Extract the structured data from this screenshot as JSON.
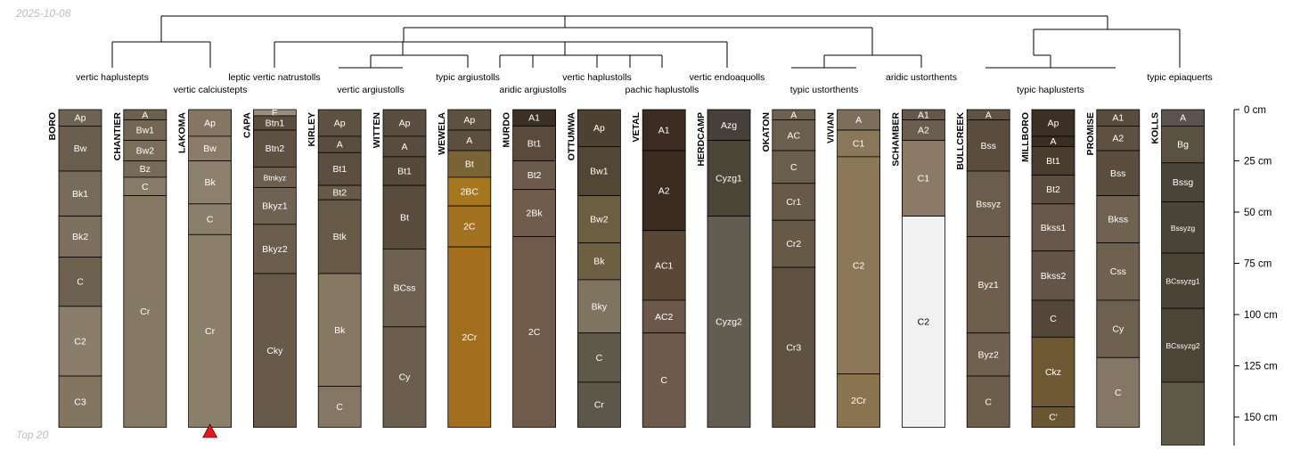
{
  "header": {
    "date": "2025-10-08",
    "footer": "Top 20"
  },
  "depth_axis": {
    "unit": "cm",
    "ticks": [
      0,
      25,
      50,
      75,
      100,
      125,
      150
    ],
    "tick_labels": [
      "0 cm",
      "25 cm",
      "50 cm",
      "75 cm",
      "100 cm",
      "125 cm",
      "150 cm"
    ]
  },
  "marker": {
    "profile": "LAKOMA",
    "shape": "triangle",
    "color": "#e8161b"
  },
  "taxa": [
    "vertic haplustepts",
    "vertic calciustepts",
    "leptic vertic natrustolls",
    "vertic argiustolls",
    "typic argiustolls",
    "aridic argiustolls",
    "vertic haplustolls",
    "pachic haplustolls",
    "vertic endoaquolls",
    "typic ustorthents",
    "aridic ustorthents",
    "typic haplusterts",
    "typic epiaquerts"
  ],
  "profiles": [
    {
      "name": "BORO",
      "horizons": [
        {
          "name": "Ap",
          "top": 0,
          "bottom": 8,
          "color": "#6f6354"
        },
        {
          "name": "Bw",
          "top": 8,
          "bottom": 30,
          "color": "#6a5e4e"
        },
        {
          "name": "Bk1",
          "top": 30,
          "bottom": 52,
          "color": "#776b5b"
        },
        {
          "name": "Bk2",
          "top": 52,
          "bottom": 72,
          "color": "#7d705f"
        },
        {
          "name": "C",
          "top": 72,
          "bottom": 96,
          "color": "#6c604f"
        },
        {
          "name": "C2",
          "top": 96,
          "bottom": 130,
          "color": "#8a7d69"
        },
        {
          "name": "C3",
          "top": 130,
          "bottom": 155,
          "color": "#837661"
        }
      ]
    },
    {
      "name": "CHANTIER",
      "horizons": [
        {
          "name": "A",
          "top": 0,
          "bottom": 5,
          "color": "#6b5f50"
        },
        {
          "name": "Bw1",
          "top": 5,
          "bottom": 15,
          "color": "#736754"
        },
        {
          "name": "Bw2",
          "top": 15,
          "bottom": 25,
          "color": "#7a6d59"
        },
        {
          "name": "Bz",
          "top": 25,
          "bottom": 33,
          "color": "#766a58"
        },
        {
          "name": "C",
          "top": 33,
          "bottom": 42,
          "color": "#877a67"
        },
        {
          "name": "Cr",
          "top": 42,
          "bottom": 155,
          "color": "#857963"
        }
      ]
    },
    {
      "name": "LAKOMA",
      "horizons": [
        {
          "name": "Ap",
          "top": 0,
          "bottom": 13,
          "color": "#847663"
        },
        {
          "name": "Bw",
          "top": 13,
          "bottom": 25,
          "color": "#8a7c68"
        },
        {
          "name": "Bk",
          "top": 25,
          "bottom": 46,
          "color": "#8d806c"
        },
        {
          "name": "C",
          "top": 46,
          "bottom": 61,
          "color": "#8b7e6a"
        },
        {
          "name": "Cr",
          "top": 61,
          "bottom": 155,
          "color": "#8c7f6a"
        }
      ]
    },
    {
      "name": "CAPA",
      "horizons": [
        {
          "name": "E",
          "top": 0,
          "bottom": 3,
          "color": "#9a8e7e"
        },
        {
          "name": "Btn1",
          "top": 3,
          "bottom": 10,
          "color": "#5a4d3e"
        },
        {
          "name": "Btn2",
          "top": 10,
          "bottom": 28,
          "color": "#5e5142"
        },
        {
          "name": "Btnkyz",
          "top": 28,
          "bottom": 38,
          "color": "#6c5f4f"
        },
        {
          "name": "Bkyz1",
          "top": 38,
          "bottom": 56,
          "color": "#6f6252"
        },
        {
          "name": "Bkyz2",
          "top": 56,
          "bottom": 80,
          "color": "#6a5d4c"
        },
        {
          "name": "Cky",
          "top": 80,
          "bottom": 155,
          "color": "#675a48"
        }
      ]
    },
    {
      "name": "KIRLEY",
      "horizons": [
        {
          "name": "Ap",
          "top": 0,
          "bottom": 13,
          "color": "#5e5142"
        },
        {
          "name": "A",
          "top": 13,
          "bottom": 21,
          "color": "#5a4d3e"
        },
        {
          "name": "Bt1",
          "top": 21,
          "bottom": 37,
          "color": "#5c4f40"
        },
        {
          "name": "Bt2",
          "top": 37,
          "bottom": 44,
          "color": "#675a48"
        },
        {
          "name": "Btk",
          "top": 44,
          "bottom": 80,
          "color": "#675a47"
        },
        {
          "name": "Bk",
          "top": 80,
          "bottom": 135,
          "color": "#857762"
        },
        {
          "name": "C",
          "top": 135,
          "bottom": 155,
          "color": "#857763"
        }
      ]
    },
    {
      "name": "WITTEN",
      "horizons": [
        {
          "name": "Ap",
          "top": 0,
          "bottom": 13,
          "color": "#5a4e40"
        },
        {
          "name": "A",
          "top": 13,
          "bottom": 23,
          "color": "#584c3e"
        },
        {
          "name": "Bt1",
          "top": 23,
          "bottom": 37,
          "color": "#56493a"
        },
        {
          "name": "Bt",
          "top": 37,
          "bottom": 68,
          "color": "#5a4c3c"
        },
        {
          "name": "BCss",
          "top": 68,
          "bottom": 106,
          "color": "#6f6150"
        },
        {
          "name": "Cy",
          "top": 106,
          "bottom": 155,
          "color": "#6b5e4c"
        }
      ]
    },
    {
      "name": "WEWELA",
      "horizons": [
        {
          "name": "Ap",
          "top": 0,
          "bottom": 10,
          "color": "#5f5140"
        },
        {
          "name": "A",
          "top": 10,
          "bottom": 20,
          "color": "#5d4f3e"
        },
        {
          "name": "Bt",
          "top": 20,
          "bottom": 33,
          "color": "#7a6335"
        },
        {
          "name": "2BC",
          "top": 33,
          "bottom": 47,
          "color": "#a5771f"
        },
        {
          "name": "2C",
          "top": 47,
          "bottom": 67,
          "color": "#a27220"
        },
        {
          "name": "2Cr",
          "top": 67,
          "bottom": 155,
          "color": "#a36f1f"
        }
      ]
    },
    {
      "name": "MURDO",
      "horizons": [
        {
          "name": "A1",
          "top": 0,
          "bottom": 8,
          "color": "#3c2f24"
        },
        {
          "name": "Bt1",
          "top": 8,
          "bottom": 25,
          "color": "#5a4a3c"
        },
        {
          "name": "Bt2",
          "top": 25,
          "bottom": 39,
          "color": "#6c5a4a"
        },
        {
          "name": "2Bk",
          "top": 39,
          "bottom": 62,
          "color": "#705c4b"
        },
        {
          "name": "2C",
          "top": 62,
          "bottom": 155,
          "color": "#705b4a"
        }
      ]
    },
    {
      "name": "OTTUMWA",
      "horizons": [
        {
          "name": "Ap",
          "top": 0,
          "bottom": 18,
          "color": "#4d4131"
        },
        {
          "name": "Bw1",
          "top": 18,
          "bottom": 42,
          "color": "#524635"
        },
        {
          "name": "Bw2",
          "top": 42,
          "bottom": 65,
          "color": "#6b5f3f"
        },
        {
          "name": "Bk",
          "top": 65,
          "bottom": 83,
          "color": "#6d6042"
        },
        {
          "name": "Bky",
          "top": 83,
          "bottom": 109,
          "color": "#7e7460"
        },
        {
          "name": "C",
          "top": 109,
          "bottom": 133,
          "color": "#5f594a"
        },
        {
          "name": "Cr",
          "top": 133,
          "bottom": 155,
          "color": "#5c5749"
        }
      ]
    },
    {
      "name": "VETAL",
      "horizons": [
        {
          "name": "A1",
          "top": 0,
          "bottom": 20,
          "color": "#3c2c22"
        },
        {
          "name": "A2",
          "top": 20,
          "bottom": 59,
          "color": "#3a2c21"
        },
        {
          "name": "AC1",
          "top": 59,
          "bottom": 93,
          "color": "#594836"
        },
        {
          "name": "AC2",
          "top": 93,
          "bottom": 109,
          "color": "#6b5848"
        },
        {
          "name": "C",
          "top": 109,
          "bottom": 155,
          "color": "#6c5b4b"
        }
      ]
    },
    {
      "name": "HERDCAMP",
      "horizons": [
        {
          "name": "Azg",
          "top": 0,
          "bottom": 15,
          "color": "#45403a"
        },
        {
          "name": "Cyzg1",
          "top": 15,
          "bottom": 52,
          "color": "#4b4537"
        },
        {
          "name": "Cyzg2",
          "top": 52,
          "bottom": 155,
          "color": "#615d50"
        }
      ]
    },
    {
      "name": "OKATON",
      "horizons": [
        {
          "name": "A",
          "top": 0,
          "bottom": 5,
          "color": "#6c604f"
        },
        {
          "name": "AC",
          "top": 5,
          "bottom": 20,
          "color": "#6b5f4d"
        },
        {
          "name": "C",
          "top": 20,
          "bottom": 36,
          "color": "#6a5e4c"
        },
        {
          "name": "Cr1",
          "top": 36,
          "bottom": 54,
          "color": "#675a48"
        },
        {
          "name": "Cr2",
          "top": 54,
          "bottom": 77,
          "color": "#665946"
        },
        {
          "name": "Cr3",
          "top": 77,
          "bottom": 155,
          "color": "#5f5241"
        }
      ]
    },
    {
      "name": "VIVIAN",
      "horizons": [
        {
          "name": "A",
          "top": 0,
          "bottom": 10,
          "color": "#7d6d5b"
        },
        {
          "name": "C1",
          "top": 10,
          "bottom": 23,
          "color": "#8a7658"
        },
        {
          "name": "C2",
          "top": 23,
          "bottom": 129,
          "color": "#8c7859"
        },
        {
          "name": "2Cr",
          "top": 129,
          "bottom": 155,
          "color": "#8a744f"
        }
      ]
    },
    {
      "name": "SCHAMBER",
      "horizons": [
        {
          "name": "A1",
          "top": 0,
          "bottom": 5,
          "color": "#65584a"
        },
        {
          "name": "A2",
          "top": 5,
          "bottom": 15,
          "color": "#6b5e4f"
        },
        {
          "name": "C1",
          "top": 15,
          "bottom": 52,
          "color": "#8a7a66"
        },
        {
          "name": "C2",
          "top": 52,
          "bottom": 155,
          "color": "#f1f1f1"
        }
      ]
    },
    {
      "name": "BULLCREEK",
      "horizons": [
        {
          "name": "A",
          "top": 0,
          "bottom": 5,
          "color": "#605242"
        },
        {
          "name": "Bss",
          "top": 5,
          "bottom": 30,
          "color": "#5b4d3d"
        },
        {
          "name": "Bssyz",
          "top": 30,
          "bottom": 62,
          "color": "#6b5d4b"
        },
        {
          "name": "Byz1",
          "top": 62,
          "bottom": 109,
          "color": "#6d5f4c"
        },
        {
          "name": "Byz2",
          "top": 109,
          "bottom": 130,
          "color": "#6e604d"
        },
        {
          "name": "C",
          "top": 130,
          "bottom": 155,
          "color": "#6c5e4b"
        }
      ]
    },
    {
      "name": "MILLBORO",
      "horizons": [
        {
          "name": "Ap",
          "top": 0,
          "bottom": 13,
          "color": "#3c3024"
        },
        {
          "name": "A",
          "top": 13,
          "bottom": 18,
          "color": "#3a2e23"
        },
        {
          "name": "Bt1",
          "top": 18,
          "bottom": 32,
          "color": "#4a3d30"
        },
        {
          "name": "Bt2",
          "top": 32,
          "bottom": 46,
          "color": "#5a4c3e"
        },
        {
          "name": "Bkss1",
          "top": 46,
          "bottom": 69,
          "color": "#66574a"
        },
        {
          "name": "Bkss2",
          "top": 69,
          "bottom": 93,
          "color": "#64554a"
        },
        {
          "name": "C",
          "top": 93,
          "bottom": 111,
          "color": "#54473a"
        },
        {
          "name": "Ckz",
          "top": 111,
          "bottom": 145,
          "color": "#6e5834"
        },
        {
          "name": "C'",
          "top": 145,
          "bottom": 155,
          "color": "#6b5632"
        }
      ]
    },
    {
      "name": "PROMISE",
      "horizons": [
        {
          "name": "A1",
          "top": 0,
          "bottom": 8,
          "color": "#5a4c3d"
        },
        {
          "name": "A2",
          "top": 8,
          "bottom": 20,
          "color": "#5f5141"
        },
        {
          "name": "Bss",
          "top": 20,
          "bottom": 42,
          "color": "#5b4e3f"
        },
        {
          "name": "Bkss",
          "top": 42,
          "bottom": 65,
          "color": "#6f6250"
        },
        {
          "name": "Css",
          "top": 65,
          "bottom": 93,
          "color": "#6e6150"
        },
        {
          "name": "Cy",
          "top": 93,
          "bottom": 121,
          "color": "#6d604f"
        },
        {
          "name": "C",
          "top": 121,
          "bottom": 155,
          "color": "#857765"
        }
      ]
    },
    {
      "name": "KOLLS",
      "horizons": [
        {
          "name": "A",
          "top": 0,
          "bottom": 8,
          "color": "#5a544e"
        },
        {
          "name": "Bg",
          "top": 8,
          "bottom": 26,
          "color": "#5b5141"
        },
        {
          "name": "Bssg",
          "top": 26,
          "bottom": 45,
          "color": "#4a4338"
        },
        {
          "name": "Bssyzg",
          "top": 45,
          "bottom": 70,
          "color": "#4a4337"
        },
        {
          "name": "BCssyzg1",
          "top": 70,
          "bottom": 97,
          "color": "#4a4336"
        },
        {
          "name": "BCssyzg2",
          "top": 97,
          "bottom": 133,
          "color": "#4c4535"
        },
        {
          "name": "",
          "top": 133,
          "bottom": 168,
          "color": "#5f5a47"
        }
      ]
    }
  ]
}
